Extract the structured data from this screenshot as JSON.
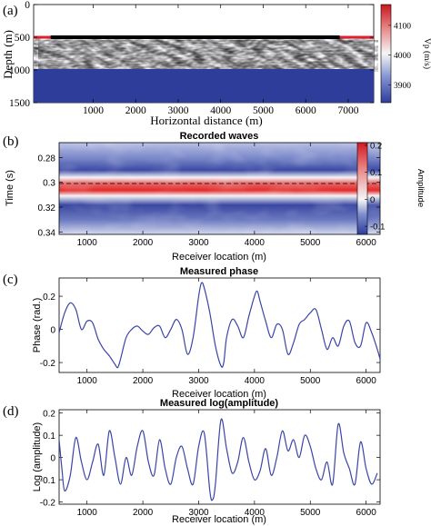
{
  "chart_data": [
    {
      "panel": "(a)",
      "type": "heatmap",
      "title": "",
      "xlabel": "Horizontal distance (m)",
      "ylabel": "Depth (m)",
      "xticks": [
        1000,
        2000,
        3000,
        4000,
        5000,
        6000,
        7000
      ],
      "yticks": [
        0,
        500,
        1000,
        1500
      ],
      "xlim": [
        -400,
        7600
      ],
      "ylim": [
        0,
        1500
      ],
      "colorbar_label": "Vp (m/s)",
      "colorbar_ticks": [
        3900,
        4000,
        4100
      ],
      "colorbar_range": [
        3840,
        4170
      ],
      "layers": [
        {
          "depth_top": 500,
          "depth_bottom": 1000,
          "vp_mean": 4000,
          "note_visible": "random velocity perturbations"
        },
        {
          "depth_top": 1000,
          "depth_bottom": 1500,
          "vp": 3850
        }
      ],
      "receiver_line": {
        "x_from": 0,
        "x_to": 6800,
        "depth": 500
      },
      "surface_line_depth": 500
    },
    {
      "panel": "(b)",
      "type": "heatmap",
      "title": "Recorded waves",
      "xlabel": "Receiver location (m)",
      "ylabel": "Time (s)",
      "xticks": [
        1000,
        2000,
        3000,
        4000,
        5000,
        6000
      ],
      "yticks": [
        0.28,
        0.3,
        0.32,
        0.34
      ],
      "ytick_labels": [
        "0.28",
        "0.3",
        "0.32",
        "0.34"
      ],
      "xlim": [
        500,
        6250
      ],
      "ylim": [
        0.268,
        0.342
      ],
      "colorbar_label": "Amplitude",
      "colorbar_ticks": [
        -0.1,
        0,
        0.1,
        0.2
      ],
      "colorbar_tick_labels": [
        "-0.1",
        "0",
        "0.1",
        "0.2"
      ],
      "colorbar_range": [
        -0.13,
        0.21
      ],
      "reference_time": 0.301
    },
    {
      "panel": "(c)",
      "type": "line",
      "title": "Measured phase",
      "xlabel": "Receiver location (m)",
      "ylabel": "Phase (rad.)",
      "xticks": [
        1000,
        2000,
        3000,
        4000,
        5000,
        6000
      ],
      "yticks": [
        -0.2,
        0,
        0.2
      ],
      "ytick_labels": [
        "-0.2",
        "0",
        "0.2"
      ],
      "xlim": [
        500,
        6250
      ],
      "ylim": [
        -0.26,
        0.31
      ],
      "color": "#3a44a8",
      "x": [
        500,
        600,
        700,
        800,
        900,
        1000,
        1100,
        1200,
        1300,
        1400,
        1500,
        1550,
        1600,
        1700,
        1800,
        1900,
        2000,
        2100,
        2200,
        2300,
        2400,
        2500,
        2600,
        2700,
        2800,
        2900,
        3000,
        3050,
        3100,
        3200,
        3300,
        3400,
        3450,
        3500,
        3600,
        3700,
        3800,
        3900,
        4000,
        4050,
        4100,
        4200,
        4300,
        4400,
        4500,
        4600,
        4700,
        4800,
        4900,
        5000,
        5100,
        5200,
        5300,
        5400,
        5500,
        5600,
        5700,
        5800,
        5900,
        6000,
        6100,
        6200,
        6250
      ],
      "y": [
        -0.02,
        0.1,
        0.16,
        0.12,
        0.0,
        0.05,
        0.04,
        -0.06,
        -0.12,
        -0.16,
        -0.21,
        -0.23,
        -0.18,
        -0.05,
        0.0,
        0.02,
        -0.01,
        -0.03,
        0.01,
        0.02,
        -0.05,
        0.0,
        0.06,
        0.0,
        -0.15,
        -0.05,
        0.2,
        0.28,
        0.25,
        0.1,
        -0.1,
        -0.22,
        -0.2,
        -0.05,
        0.06,
        0.02,
        -0.05,
        0.08,
        0.2,
        0.23,
        0.17,
        0.05,
        -0.05,
        0.03,
        0.0,
        -0.15,
        -0.08,
        0.03,
        0.06,
        0.1,
        0.12,
        0.0,
        -0.12,
        -0.05,
        -0.1,
        0.02,
        0.05,
        -0.08,
        -0.1,
        0.04,
        -0.02,
        -0.12,
        -0.18
      ]
    },
    {
      "panel": "(d)",
      "type": "line",
      "title": "Measured log(amplitude)",
      "xlabel": "Receiver location (m)",
      "ylabel": "Log (amplitude)",
      "xticks": [
        1000,
        2000,
        3000,
        4000,
        5000,
        6000
      ],
      "yticks": [
        -0.2,
        -0.1,
        0,
        0.1,
        0.2
      ],
      "ytick_labels": [
        "-0.2",
        "-0.1",
        "0",
        "0.1",
        "0.2"
      ],
      "xlim": [
        500,
        6250
      ],
      "ylim": [
        -0.21,
        0.215
      ],
      "color": "#3a44a8",
      "x": [
        500,
        550,
        600,
        700,
        800,
        900,
        1000,
        1100,
        1200,
        1300,
        1400,
        1500,
        1600,
        1700,
        1800,
        1900,
        2000,
        2100,
        2200,
        2300,
        2400,
        2500,
        2600,
        2700,
        2800,
        2900,
        3000,
        3100,
        3200,
        3250,
        3300,
        3400,
        3500,
        3600,
        3700,
        3800,
        3900,
        4000,
        4100,
        4200,
        4300,
        4400,
        4500,
        4600,
        4700,
        4800,
        4900,
        5000,
        5100,
        5200,
        5300,
        5400,
        5500,
        5600,
        5700,
        5800,
        5900,
        6000,
        6100,
        6200
      ],
      "y": [
        0.08,
        -0.05,
        -0.15,
        -0.08,
        0.09,
        -0.02,
        -0.1,
        -0.02,
        0.06,
        -0.08,
        0.12,
        0.0,
        -0.12,
        0.0,
        -0.08,
        0.05,
        0.12,
        -0.02,
        -0.08,
        0.08,
        -0.05,
        -0.12,
        0.0,
        0.05,
        -0.05,
        -0.12,
        0.05,
        0.11,
        -0.15,
        -0.19,
        -0.12,
        0.17,
        0.04,
        -0.07,
        -0.02,
        0.09,
        -0.02,
        -0.1,
        -0.06,
        0.04,
        -0.08,
        0.0,
        0.12,
        0.03,
        0.08,
        0.0,
        0.1,
        0.05,
        -0.05,
        -0.1,
        -0.02,
        -0.12,
        0.15,
        0.02,
        -0.05,
        -0.12,
        0.07,
        -0.05,
        -0.12,
        -0.07
      ]
    }
  ]
}
